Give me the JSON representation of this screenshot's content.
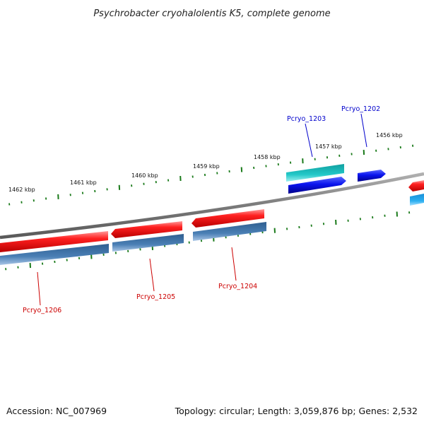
{
  "title": "Psychrobacter cryohalolentis K5, complete genome",
  "footer": {
    "accession": "Accession: NC_007969",
    "summary": "Topology: circular; Length: 3,059,876 bp; Genes: 2,532"
  },
  "ruler_labels": [
    "1462 kbp",
    "1461 kbp",
    "1460 kbp",
    "1459 kbp",
    "1458 kbp",
    "1457 kbp",
    "1456 kbp"
  ],
  "genes": {
    "pcryo_1206": {
      "label": "Pcryo_1206",
      "color": "#cc0000"
    },
    "pcryo_1205": {
      "label": "Pcryo_1205",
      "color": "#cc0000"
    },
    "pcryo_1204": {
      "label": "Pcryo_1204",
      "color": "#cc0000"
    },
    "pcryo_1203": {
      "label": "Pcryo_1203",
      "color": "#0000cc"
    },
    "pcryo_1202": {
      "label": "Pcryo_1202",
      "color": "#0000cc"
    }
  },
  "colors": {
    "backbone": "#808080",
    "tick": "#1a7a1a",
    "reverse_gene": "#ff2020",
    "reverse_cds": "#4a7fb5",
    "forward_gene": "#0a14ee",
    "forward_cds": "#22c8c8",
    "forward_cds_light": "#2aaef0"
  }
}
